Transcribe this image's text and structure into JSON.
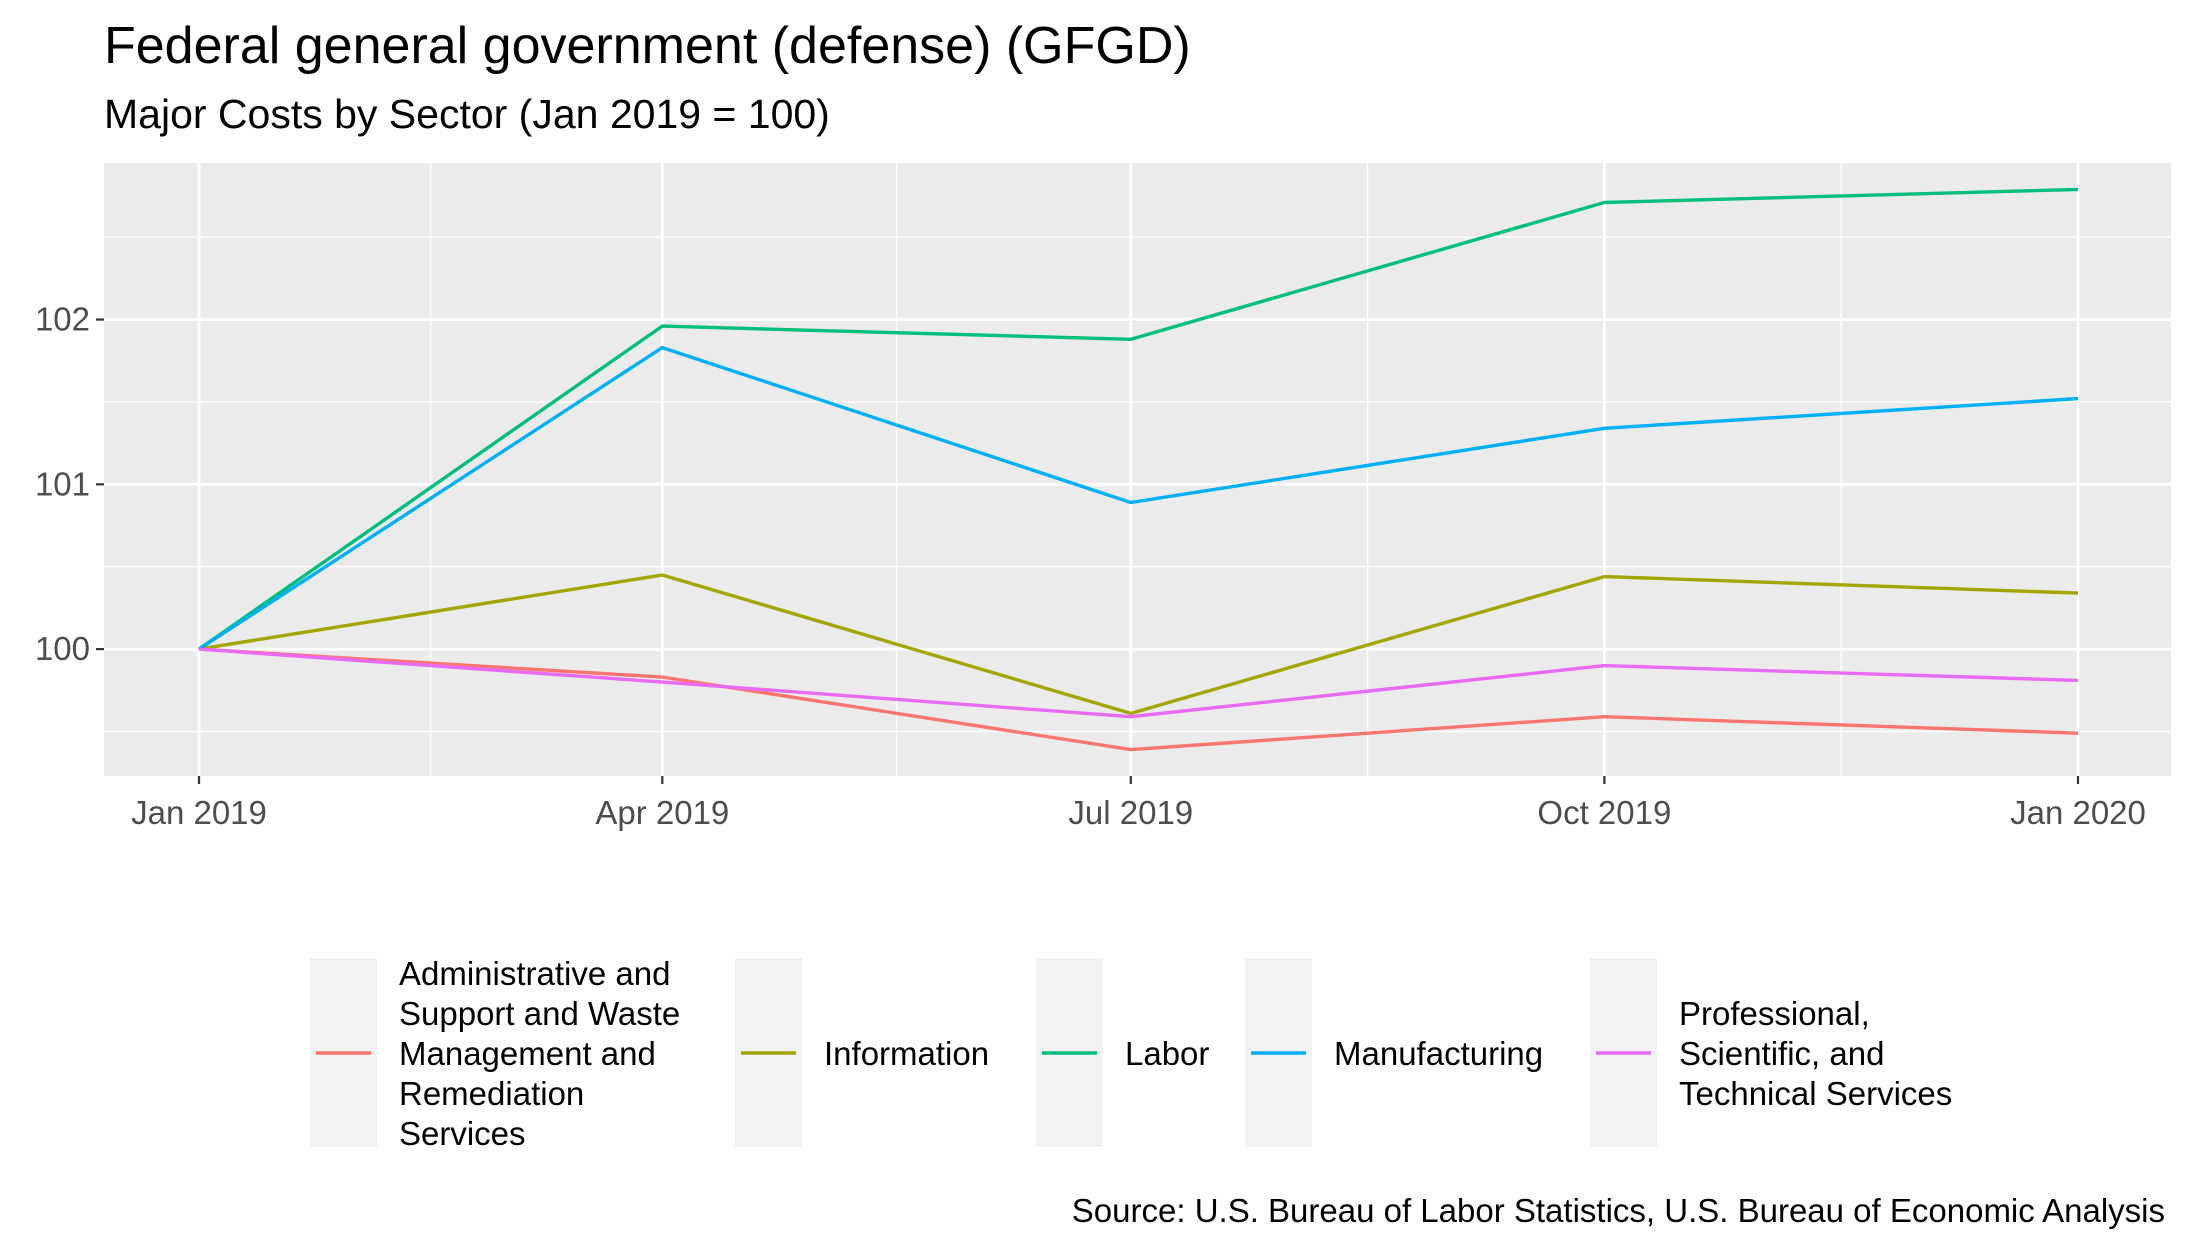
{
  "chart_data": {
    "type": "line",
    "title": "Federal general government (defense) (GFGD)",
    "subtitle": "Major Costs by Sector (Jan 2019 = 100)",
    "caption": "Source: U.S. Bureau of Labor Statistics, U.S. Bureau of Economic Analysis",
    "xlabel": "",
    "ylabel": "",
    "x": [
      "2019-01-01",
      "2019-04-01",
      "2019-07-01",
      "2019-10-01",
      "2020-01-01"
    ],
    "x_tick_labels": [
      "Jan 2019",
      "Apr 2019",
      "Jul 2019",
      "Oct 2019",
      "Jan 2020"
    ],
    "y_ticks": [
      100,
      101,
      102
    ],
    "ylim": [
      99.23,
      102.95
    ],
    "grid": true,
    "legend_position": "bottom",
    "series": [
      {
        "name": "Administrative and Support and Waste Management and Remediation Services",
        "legend_lines": [
          "Administrative and",
          "Support and Waste",
          "Management and",
          "Remediation",
          "Services"
        ],
        "color": "#F8766D",
        "values": [
          100,
          99.83,
          99.39,
          99.59,
          99.49
        ]
      },
      {
        "name": "Information",
        "legend_lines": [
          "Information"
        ],
        "color": "#A3A500",
        "values": [
          100,
          100.45,
          99.61,
          100.44,
          100.34
        ]
      },
      {
        "name": "Labor",
        "legend_lines": [
          "Labor"
        ],
        "color": "#00BF7D",
        "values": [
          100,
          101.96,
          101.88,
          102.71,
          102.79
        ]
      },
      {
        "name": "Manufacturing",
        "legend_lines": [
          "Manufacturing"
        ],
        "color": "#00B0F6",
        "values": [
          100,
          101.83,
          100.89,
          101.34,
          101.52
        ]
      },
      {
        "name": "Professional, Scientific, and Technical Services",
        "legend_lines": [
          "Professional,",
          "Scientific, and",
          "Technical Services"
        ],
        "color": "#E76BF3",
        "values": [
          100,
          99.8,
          99.59,
          99.9,
          99.81
        ]
      }
    ]
  }
}
